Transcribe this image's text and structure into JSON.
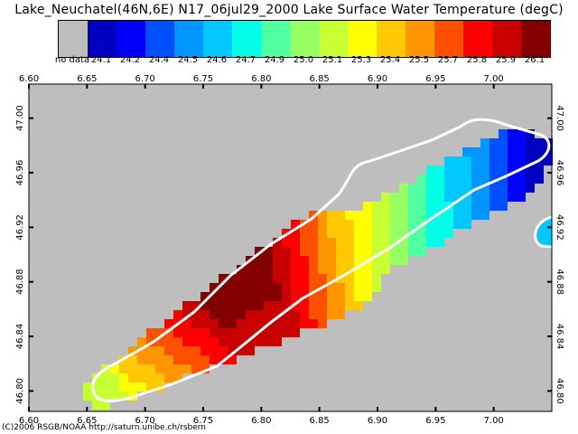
{
  "title": "Lake_Neuchatel(46N,6E) N17_06jul29_2000 Lake Surface Water Temperature (degC)",
  "credit": "(C)2006 RSGB/NOAA http://saturn.unibe.ch/rsbern",
  "colorbar": {
    "unit": "degC",
    "nodata_label": "no data",
    "nodata_color": "#bebebe",
    "levels": [
      {
        "label": "24.1",
        "color": "#0000c0"
      },
      {
        "label": "24.2",
        "color": "#0000ff"
      },
      {
        "label": "24.4",
        "color": "#0050ff"
      },
      {
        "label": "24.5",
        "color": "#0096ff"
      },
      {
        "label": "24.6",
        "color": "#00c8ff"
      },
      {
        "label": "24.7",
        "color": "#00ffe6"
      },
      {
        "label": "24.9",
        "color": "#50ffa0"
      },
      {
        "label": "25.0",
        "color": "#96ff64"
      },
      {
        "label": "25.1",
        "color": "#c8ff32"
      },
      {
        "label": "25.3",
        "color": "#ffff00"
      },
      {
        "label": "25.4",
        "color": "#ffc800"
      },
      {
        "label": "25.5",
        "color": "#ff9600"
      },
      {
        "label": "25.7",
        "color": "#ff5000"
      },
      {
        "label": "25.8",
        "color": "#ff0000"
      },
      {
        "label": "25.9",
        "color": "#c80000"
      },
      {
        "label": "26.1",
        "color": "#820000"
      }
    ]
  },
  "map": {
    "lon_ticks": [
      "6.60",
      "6.65",
      "6.70",
      "6.75",
      "6.80",
      "6.85",
      "6.90",
      "6.95",
      "7.00"
    ],
    "lat_ticks": [
      "47.00",
      "46.96",
      "46.92",
      "46.88",
      "46.84",
      "46.80"
    ],
    "lon_range": [
      6.6,
      7.05
    ],
    "lat_range": [
      46.785,
      47.025
    ],
    "land_color": "#bebebe",
    "shoreline_color": "#ffffff",
    "frame_color": "#000000"
  }
}
